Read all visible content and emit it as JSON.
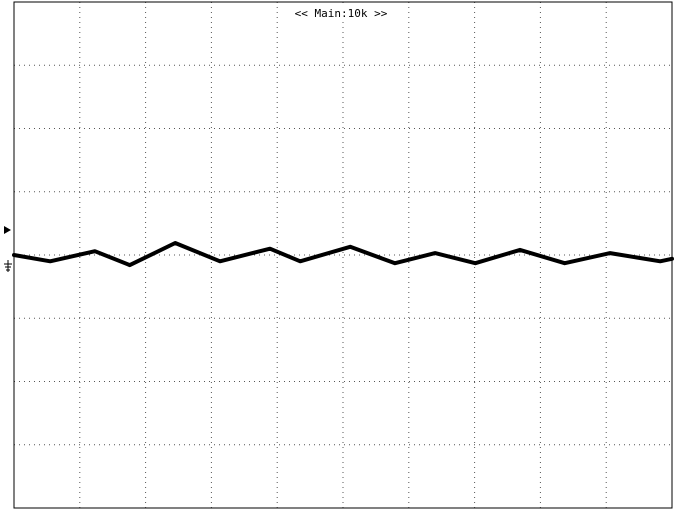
{
  "chart_data": {
    "type": "line",
    "title": "<< Main:10k >>",
    "xlim": [
      0,
      10
    ],
    "ylim": [
      -4,
      4
    ],
    "xticks": [
      0,
      1,
      2,
      3,
      4,
      5,
      6,
      7,
      8,
      9,
      10
    ],
    "yticks": [
      -4,
      -3,
      -2,
      -1,
      0,
      1,
      2,
      3,
      4
    ],
    "grid": true,
    "series": [
      {
        "color": "#000000",
        "x": [
          0,
          0.55,
          1.23,
          1.76,
          2.45,
          3.13,
          3.89,
          4.35,
          5.11,
          5.79,
          6.4,
          7.01,
          7.69,
          8.37,
          9.06,
          9.82,
          10
        ],
        "values": [
          0,
          -0.1,
          0.06,
          -0.16,
          0.19,
          -0.1,
          0.1,
          -0.1,
          0.13,
          -0.13,
          0.03,
          -0.13,
          0.08,
          -0.13,
          0.03,
          -0.1,
          -0.06
        ]
      }
    ]
  }
}
